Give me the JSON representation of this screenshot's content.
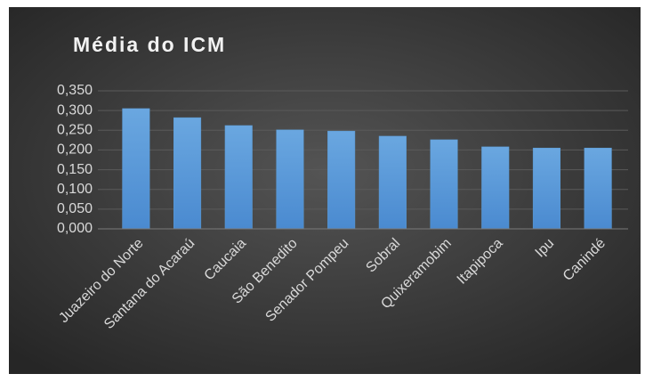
{
  "chart_data": {
    "type": "bar",
    "title": "Média do ICM",
    "categories": [
      "Juazeiro do Norte",
      "Santana do Acaraú",
      "Caucaia",
      "São Benedito",
      "Senador Pompeu",
      "Sobral",
      "Quixeramobim",
      "Itapipoca",
      "Ipu",
      "Canindé"
    ],
    "values": [
      0.305,
      0.282,
      0.262,
      0.251,
      0.248,
      0.235,
      0.226,
      0.208,
      0.205,
      0.205
    ],
    "color": "#5b9bd5",
    "ylim": [
      0,
      0.35
    ],
    "yticks": [
      {
        "value": 0,
        "label": "0,000"
      },
      {
        "value": 0.05,
        "label": "0,050"
      },
      {
        "value": 0.1,
        "label": "0,100"
      },
      {
        "value": 0.15,
        "label": "0,150"
      },
      {
        "value": 0.2,
        "label": "0,200"
      },
      {
        "value": 0.25,
        "label": "0,250"
      },
      {
        "value": 0.3,
        "label": "0,300"
      },
      {
        "value": 0.35,
        "label": "0,350"
      }
    ],
    "grid": true
  }
}
